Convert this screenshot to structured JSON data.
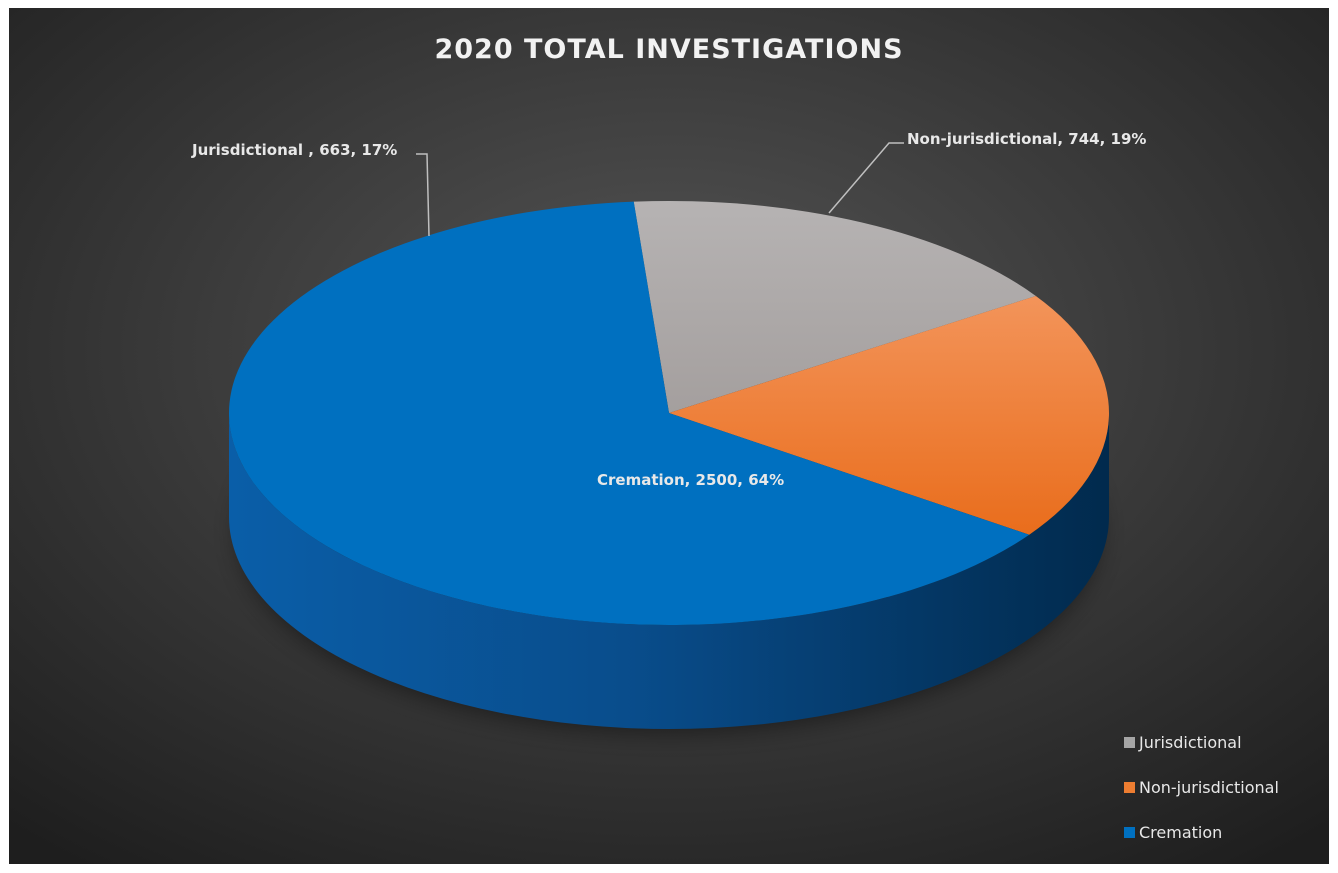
{
  "chart_data": {
    "type": "pie",
    "title": "2020 TOTAL INVESTIGATIONS",
    "slices": [
      {
        "name": "Jurisdictional",
        "value": 663,
        "percent": 17,
        "color": "#a5a5a5",
        "label": "Jurisdictional , 663, 17%"
      },
      {
        "name": "Non-jurisdictional",
        "value": 744,
        "percent": 19,
        "color": "#ed7d31",
        "label": "Non-jurisdictional, 744, 19%"
      },
      {
        "name": "Cremation",
        "value": 2500,
        "percent": 64,
        "color": "#0070c0",
        "label": "Cremation, 2500, 64%"
      }
    ],
    "legend": [
      "Jurisdictional",
      "Non-jurisdictional",
      "Cremation"
    ],
    "legend_position": "bottom-right",
    "style": "3d"
  }
}
